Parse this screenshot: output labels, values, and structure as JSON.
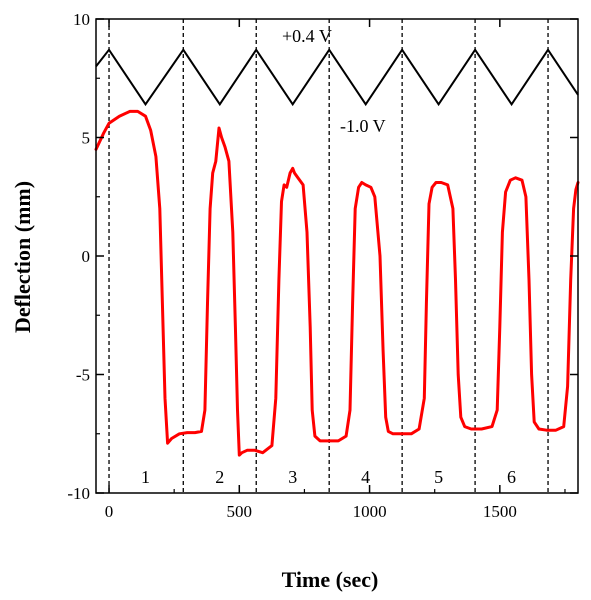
{
  "chart_data": {
    "type": "line",
    "title": "",
    "xlabel": "Time (sec)",
    "ylabel": "Deflection (mm)",
    "xlim": [
      -50,
      1800
    ],
    "ylim": [
      -10,
      10
    ],
    "xticks": [
      0,
      500,
      1000,
      1500
    ],
    "yticks": [
      -10,
      -5,
      0,
      5,
      10
    ],
    "grid": false,
    "colors": {
      "deflection": "#ff0000",
      "voltage": "#000000",
      "cycle_lines": "#000000"
    },
    "voltage_labels": {
      "high": "+0.4 V",
      "low": "-1.0 V"
    },
    "cycle_boundaries": [
      0,
      285,
      565,
      845,
      1125,
      1405,
      1685
    ],
    "cycle_labels": [
      {
        "label": "1",
        "x": 140
      },
      {
        "label": "2",
        "x": 425
      },
      {
        "label": "3",
        "x": 705
      },
      {
        "label": "4",
        "x": 985
      },
      {
        "label": "5",
        "x": 1265
      },
      {
        "label": "6",
        "x": 1545
      }
    ],
    "series": [
      {
        "name": "voltage",
        "x": [
          -50,
          0,
          140,
          285,
          425,
          565,
          705,
          845,
          985,
          1125,
          1265,
          1405,
          1545,
          1685,
          1800
        ],
        "y": [
          8.0,
          8.7,
          6.4,
          8.7,
          6.4,
          8.7,
          6.4,
          8.7,
          6.4,
          8.7,
          6.4,
          8.7,
          6.4,
          8.7,
          6.8
        ]
      },
      {
        "name": "deflection",
        "x": [
          -50,
          -20,
          0,
          40,
          80,
          110,
          140,
          160,
          180,
          195,
          205,
          215,
          225,
          240,
          270,
          300,
          330,
          355,
          368,
          378,
          388,
          398,
          410,
          422,
          432,
          445,
          460,
          475,
          485,
          493,
          500,
          510,
          530,
          560,
          590,
          625,
          640,
          652,
          662,
          672,
          682,
          695,
          705,
          712,
          725,
          745,
          760,
          772,
          780,
          790,
          810,
          850,
          880,
          910,
          925,
          935,
          945,
          958,
          970,
          985,
          1005,
          1020,
          1040,
          1052,
          1062,
          1072,
          1090,
          1120,
          1160,
          1190,
          1210,
          1218,
          1228,
          1240,
          1255,
          1275,
          1300,
          1320,
          1330,
          1340,
          1350,
          1365,
          1390,
          1430,
          1470,
          1490,
          1500,
          1510,
          1522,
          1540,
          1560,
          1585,
          1600,
          1612,
          1622,
          1632,
          1650,
          1680,
          1715,
          1745,
          1760,
          1772,
          1783,
          1792,
          1800
        ],
        "y": [
          4.5,
          5.2,
          5.6,
          5.9,
          6.1,
          6.1,
          5.9,
          5.3,
          4.2,
          2.0,
          -2.0,
          -6.0,
          -7.9,
          -7.7,
          -7.5,
          -7.45,
          -7.45,
          -7.4,
          -6.5,
          -2.0,
          2.0,
          3.5,
          4.0,
          5.4,
          5.0,
          4.6,
          4.0,
          1.0,
          -3.0,
          -6.5,
          -8.4,
          -8.3,
          -8.2,
          -8.2,
          -8.3,
          -8.0,
          -6.0,
          -1.0,
          2.3,
          3.0,
          2.9,
          3.5,
          3.7,
          3.5,
          3.3,
          3.0,
          1.0,
          -3.0,
          -6.5,
          -7.6,
          -7.8,
          -7.8,
          -7.8,
          -7.6,
          -6.5,
          -2.0,
          2.0,
          2.9,
          3.1,
          3.0,
          2.9,
          2.5,
          0.0,
          -4.0,
          -6.8,
          -7.4,
          -7.5,
          -7.5,
          -7.5,
          -7.3,
          -6.0,
          -2.0,
          2.2,
          2.9,
          3.1,
          3.1,
          3.0,
          2.0,
          -1.0,
          -5.0,
          -6.8,
          -7.2,
          -7.3,
          -7.3,
          -7.2,
          -6.5,
          -3.0,
          1.0,
          2.7,
          3.2,
          3.3,
          3.2,
          2.5,
          -1.0,
          -5.0,
          -7.0,
          -7.3,
          -7.35,
          -7.35,
          -7.2,
          -5.5,
          -1.0,
          2.0,
          2.8,
          3.1
        ]
      }
    ]
  }
}
